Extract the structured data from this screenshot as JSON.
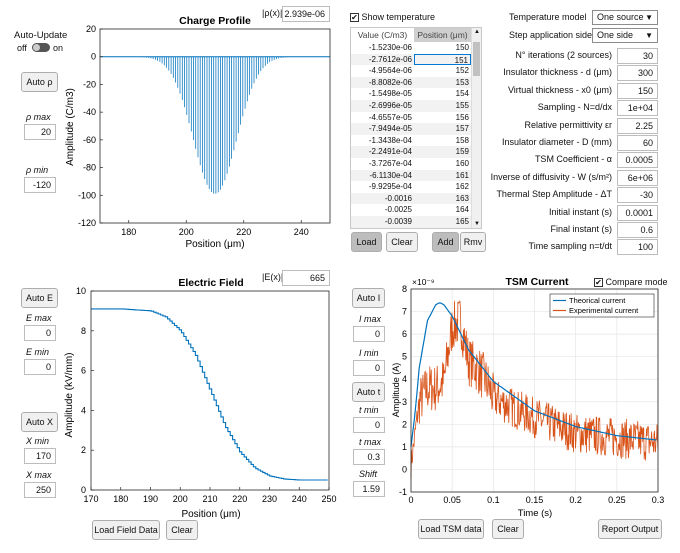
{
  "colors": {
    "blue": "#0072bd",
    "orange": "#d95319",
    "bg": "#ffffff"
  },
  "auto_update": {
    "label": "Auto-Update",
    "off": "off",
    "on": "on"
  },
  "rho_panel": {
    "auto": "Auto ρ",
    "max_label": "ρ max",
    "max": "20",
    "min_label": "ρ min",
    "min": "-120"
  },
  "charge": {
    "title": "Charge Profile",
    "readout_label": "|ρ(x)|",
    "readout": "2.939e-06",
    "xlabel": "Position (μm)",
    "ylabel": "Amplitude (C/m3)",
    "xticks": [
      "180",
      "200",
      "220",
      "240"
    ],
    "yticks": [
      "20",
      "0",
      "-20",
      "-40",
      "-60",
      "-80",
      "-100",
      "-120"
    ]
  },
  "table": {
    "show_temp": "Show temperature",
    "col1": "Value (C/m3)",
    "col2": "Position (μm)",
    "rows": [
      [
        "-1.5230e-06",
        "150"
      ],
      [
        "-2.7612e-06",
        "151"
      ],
      [
        "-4.9564e-06",
        "152"
      ],
      [
        "-8.8082e-06",
        "153"
      ],
      [
        "-1.5498e-05",
        "154"
      ],
      [
        "-2.6996e-05",
        "155"
      ],
      [
        "-4.6557e-05",
        "156"
      ],
      [
        "-7.9494e-05",
        "157"
      ],
      [
        "-1.3438e-04",
        "158"
      ],
      [
        "-2.2491e-04",
        "159"
      ],
      [
        "-3.7267e-04",
        "160"
      ],
      [
        "-6.1130e-04",
        "161"
      ],
      [
        "-9.9295e-04",
        "162"
      ],
      [
        "-0.0016",
        "163"
      ],
      [
        "-0.0025",
        "164"
      ],
      [
        "-0.0039",
        "165"
      ]
    ],
    "load": "Load",
    "clear": "Clear",
    "add": "Add",
    "rmv": "Rmv"
  },
  "params": {
    "temp_model_label": "Temperature model",
    "temp_model": "One source",
    "step_side_label": "Step application side",
    "step_side": "One side",
    "fields": [
      {
        "label": "N° iterations (2 sources)",
        "value": "30"
      },
      {
        "label": "Insulator thickness - d (μm)",
        "value": "300"
      },
      {
        "label": "Virtual thickness - x0 (μm)",
        "value": "150"
      },
      {
        "label": "Sampling - N=d/dx",
        "value": "1e+04"
      },
      {
        "label": "Relative permittivity εr",
        "value": "2.25"
      },
      {
        "label": "Insulator diameter - D (mm)",
        "value": "60"
      },
      {
        "label": "TSM Coefficient - α",
        "value": "0.0005"
      },
      {
        "label": "Inverse of diffusivity - W (s/m²)",
        "value": "6e+06"
      },
      {
        "label": "Thermal Step Amplitude - ΔT",
        "value": "-30"
      },
      {
        "label": "Initial instant (s)",
        "value": "0.0001"
      },
      {
        "label": "Final instant (s)",
        "value": "0.6"
      },
      {
        "label": "Time sampling n=t/dt",
        "value": "100"
      }
    ]
  },
  "e_panel": {
    "auto_e": "Auto E",
    "emax_label": "E max",
    "emax": "0",
    "emin_label": "E min",
    "emin": "0",
    "auto_x": "Auto X",
    "xmin_label": "X min",
    "xmin": "170",
    "xmax_label": "X max",
    "xmax": "250"
  },
  "field": {
    "title": "Electric Field",
    "readout_label": "|E(x)|",
    "readout": "665",
    "xlabel": "Position (μm)",
    "ylabel": "Amplitude (kV/mm)",
    "xticks": [
      "170",
      "180",
      "190",
      "200",
      "210",
      "220",
      "230",
      "240",
      "250"
    ],
    "yticks": [
      "10",
      "8",
      "6",
      "4",
      "2",
      "0"
    ],
    "load": "Load Field Data",
    "clear": "Clear"
  },
  "i_panel": {
    "auto_i": "Auto I",
    "imax_label": "I max",
    "imax": "0",
    "imin_label": "I min",
    "imin": "0",
    "auto_t": "Auto t",
    "tmin_label": "t min",
    "tmin": "0",
    "tmax_label": "t max",
    "tmax": "0.3",
    "shift_label": "Shift",
    "shift": "1.59"
  },
  "tsm": {
    "title": "TSM Current",
    "compare": "Compare mode",
    "exponent": "×10⁻⁹",
    "xlabel": "Time (s)",
    "ylabel": "Amplitude (A)",
    "xticks": [
      "0",
      "0.05",
      "0.1",
      "0.15",
      "0.2",
      "0.25",
      "0.3"
    ],
    "yticks": [
      "8",
      "7",
      "6",
      "5",
      "4",
      "3",
      "2",
      "1",
      "0",
      "-1"
    ],
    "legend": [
      "Theorical current",
      "Experimental current"
    ],
    "load": "Load TSM data",
    "clear": "Clear",
    "report": "Report Output"
  },
  "chart_data": [
    {
      "type": "bar",
      "title": "Charge Profile",
      "xlabel": "Position (μm)",
      "ylabel": "Amplitude (C/m3)",
      "xlim": [
        170,
        250
      ],
      "ylim": [
        -120,
        20
      ],
      "series": [
        {
          "shape": "gaussian",
          "center": 210,
          "sigma": 7.5,
          "amplitude": -99,
          "range": [
            176,
            244
          ]
        }
      ]
    },
    {
      "type": "line",
      "title": "Electric Field",
      "xlabel": "Position (μm)",
      "ylabel": "Amplitude (kV/mm)",
      "xlim": [
        170,
        250
      ],
      "ylim": [
        0,
        10
      ],
      "series": [
        {
          "x": [
            170,
            180,
            190,
            195,
            200,
            205,
            210,
            215,
            220,
            225,
            230,
            235,
            240,
            250
          ],
          "values": [
            9.1,
            9.1,
            9.0,
            8.7,
            8.0,
            6.8,
            5.0,
            3.2,
            1.9,
            1.1,
            0.7,
            0.55,
            0.5,
            0.5
          ]
        }
      ]
    },
    {
      "type": "line",
      "title": "TSM Current",
      "xlabel": "Time (s)",
      "ylabel": "Amplitude (A)",
      "xlim": [
        0,
        0.3
      ],
      "ylim": [
        -1,
        8
      ],
      "series": [
        {
          "name": "Theorical current",
          "x": [
            0,
            0.005,
            0.01,
            0.02,
            0.03,
            0.035,
            0.04,
            0.05,
            0.07,
            0.1,
            0.15,
            0.2,
            0.25,
            0.3
          ],
          "values": [
            1.0,
            2.5,
            4.5,
            6.6,
            7.3,
            7.4,
            7.3,
            6.8,
            5.3,
            3.9,
            2.6,
            1.9,
            1.5,
            1.3
          ]
        },
        {
          "name": "Experimental current",
          "x": [
            0,
            0.01,
            0.02,
            0.03,
            0.04,
            0.05,
            0.06,
            0.07,
            0.08,
            0.09,
            0.1,
            0.12,
            0.15,
            0.2,
            0.25,
            0.3
          ],
          "values": [
            0.2,
            3.0,
            3.6,
            3.6,
            3.9,
            6.3,
            6.6,
            4.8,
            4.5,
            4.0,
            3.2,
            2.8,
            2.3,
            1.6,
            1.4,
            1.2
          ]
        }
      ]
    }
  ]
}
